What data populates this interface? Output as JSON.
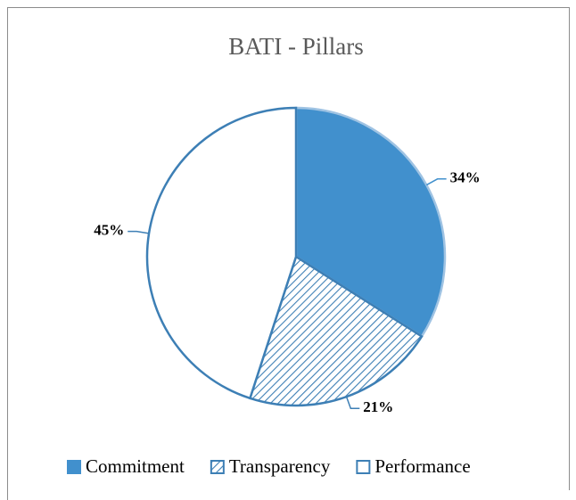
{
  "chart_data": {
    "type": "pie",
    "title": "BATI - Pillars",
    "categories": [
      "Commitment",
      "Transparency",
      "Performance"
    ],
    "values": [
      34,
      21,
      45
    ],
    "value_labels": [
      "34%",
      "21%",
      "45%"
    ],
    "colors": [
      "#4190cd",
      "#3d7fb5",
      "#3d7fb5"
    ],
    "styles": [
      "solid",
      "hatch",
      "outline"
    ],
    "legend": "bottom"
  }
}
